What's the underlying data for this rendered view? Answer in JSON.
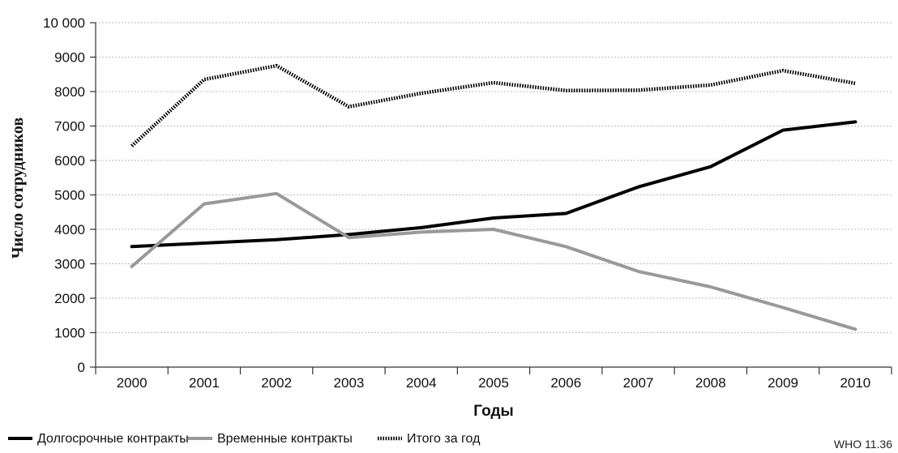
{
  "chart_data": {
    "type": "line",
    "categories": [
      "2000",
      "2001",
      "2002",
      "2003",
      "2004",
      "2005",
      "2006",
      "2007",
      "2008",
      "2009",
      "2010"
    ],
    "series": [
      {
        "name": "Долгосрочные контракты",
        "values": [
          3500,
          3600,
          3700,
          3850,
          4050,
          4330,
          4460,
          5230,
          5820,
          6880,
          7120
        ],
        "color": "#000000",
        "style": "solid"
      },
      {
        "name": "Временные контракты",
        "values": [
          2920,
          4740,
          5040,
          3760,
          3920,
          4000,
          3500,
          2780,
          2330,
          1730,
          1100
        ],
        "color": "#999999",
        "style": "solid"
      },
      {
        "name": "Итого за год",
        "values": [
          6420,
          8350,
          8750,
          7560,
          7950,
          8260,
          8030,
          8040,
          8190,
          8610,
          8240
        ],
        "color": "#000000",
        "style": "dotted"
      }
    ],
    "yticks": [
      "0",
      "1000",
      "2000",
      "3000",
      "4000",
      "5000",
      "6000",
      "7000",
      "8000",
      "9000",
      "10 000"
    ],
    "ylim": [
      0,
      10000
    ],
    "xlabel": "Годы",
    "ylabel": "Число сотрудников",
    "grid": true,
    "legend_position": "bottom-left"
  },
  "credit": "WHO 11.36",
  "colors": {
    "grid": "#bbbbbb",
    "axis": "#333333"
  }
}
